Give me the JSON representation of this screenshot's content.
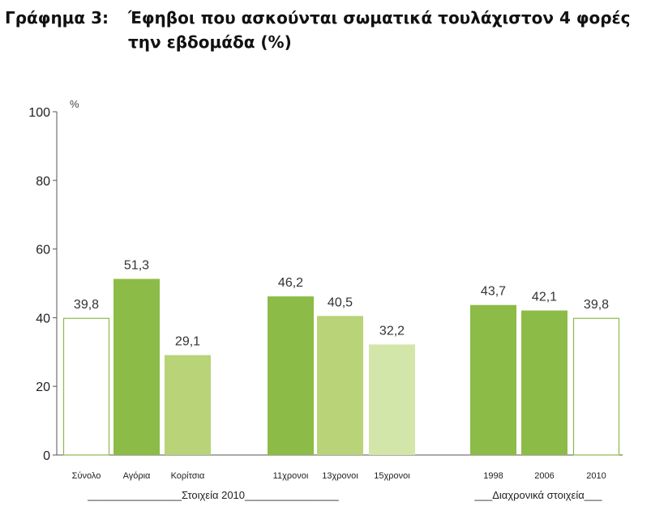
{
  "title": {
    "label": "Γράφημα 3:",
    "line1": "Έφηβοι που ασκούνται σωματικά τουλάχιστον 4 φορές",
    "line2": "την εβδομάδα (%)"
  },
  "chart_data": {
    "type": "bar",
    "ylabel": "%",
    "ylim": [
      0,
      100
    ],
    "yticks": [
      0,
      20,
      40,
      60,
      80,
      100
    ],
    "grid": false,
    "categories": [
      "Σύνολο",
      "Αγόρια",
      "Κορίτσια",
      "11χρονοι",
      "13χρονοι",
      "15χρονοι",
      "1998",
      "2006",
      "2010"
    ],
    "values": [
      39.8,
      51.3,
      29.1,
      46.2,
      40.5,
      32.2,
      43.7,
      42.1,
      39.8
    ],
    "value_labels": [
      "39,8",
      "51,3",
      "29,1",
      "46,2",
      "40,5",
      "32,2",
      "43,7",
      "42,1",
      "39,8"
    ],
    "bar_styles": [
      {
        "fill": "#ffffff",
        "stroke": "#8cb84a"
      },
      {
        "fill": "#8dbb47",
        "stroke": "none"
      },
      {
        "fill": "#b8d378",
        "stroke": "none"
      },
      {
        "fill": "#8dbb47",
        "stroke": "none"
      },
      {
        "fill": "#b8d378",
        "stroke": "none"
      },
      {
        "fill": "#d3e6a9",
        "stroke": "none"
      },
      {
        "fill": "#8dbb47",
        "stroke": "none"
      },
      {
        "fill": "#8dbb47",
        "stroke": "none"
      },
      {
        "fill": "#ffffff",
        "stroke": "#8cb84a"
      }
    ],
    "groups": [
      {
        "label": "________________Στοιχεία 2010________________",
        "members": [
          0,
          1,
          2,
          3,
          4,
          5
        ]
      },
      {
        "label": "___Διαχρονικά στοιχεία___",
        "members": [
          6,
          7,
          8
        ]
      }
    ]
  }
}
